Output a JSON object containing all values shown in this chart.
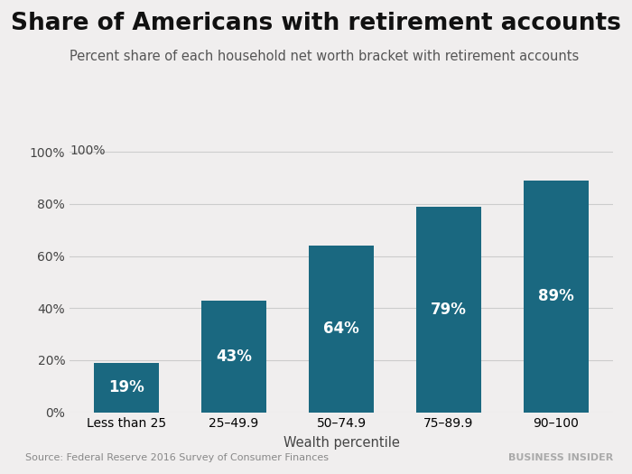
{
  "title": "Share of Americans with retirement accounts",
  "subtitle": "Percent share of each household net worth bracket with retirement accounts",
  "categories": [
    "Less than 25",
    "25–49.9",
    "50–74.9",
    "75–89.9",
    "90–100"
  ],
  "values": [
    19,
    43,
    64,
    79,
    89
  ],
  "labels": [
    "19%",
    "43%",
    "64%",
    "79%",
    "89%"
  ],
  "xlabel": "Wealth percentile",
  "ylim": [
    0,
    100
  ],
  "yticks": [
    0,
    20,
    40,
    60,
    80,
    100
  ],
  "ytick_labels": [
    "0%",
    "20%",
    "40%",
    "60%",
    "80%",
    "100%"
  ],
  "bar_color": "#1a6880",
  "background_color": "#f0eeee",
  "title_fontsize": 19,
  "subtitle_fontsize": 10.5,
  "label_fontsize": 12,
  "source_text": "Source: Federal Reserve 2016 Survey of Consumer Finances",
  "watermark_text": "BUSINESS INSIDER"
}
